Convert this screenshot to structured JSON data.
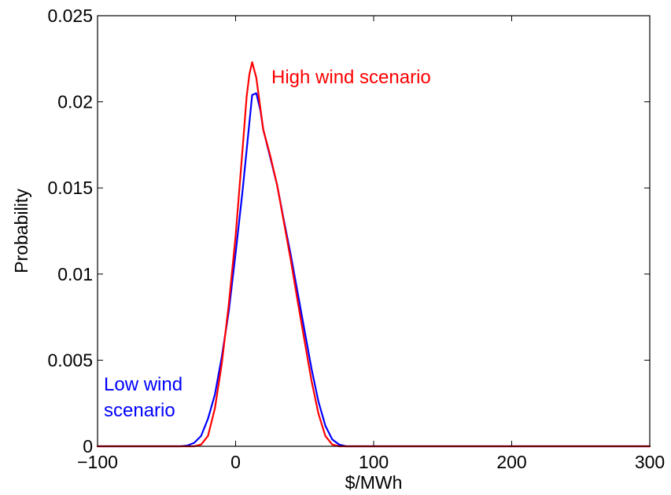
{
  "chart_data": {
    "type": "line",
    "title": "",
    "xlabel": "$/MWh",
    "ylabel": "Probability",
    "xlim": [
      -100,
      300
    ],
    "ylim": [
      0,
      0.025
    ],
    "x_ticks": [
      -100,
      0,
      100,
      200,
      300
    ],
    "x_tick_labels": [
      "−100",
      "0",
      "100",
      "200",
      "300"
    ],
    "y_ticks": [
      0,
      0.005,
      0.01,
      0.015,
      0.02,
      0.025
    ],
    "y_tick_labels": [
      "0",
      "0.005",
      "0.01",
      "0.015",
      "0.02",
      "0.025"
    ],
    "grid": false,
    "legend": "none",
    "series": [
      {
        "color": "#0000ff",
        "x": [
          -100,
          -40,
          -35,
          -30,
          -25,
          -20,
          -15,
          -10,
          -5,
          0,
          5,
          8,
          10,
          12,
          15,
          18,
          20,
          25,
          30,
          35,
          40,
          45,
          50,
          55,
          60,
          65,
          70,
          75,
          80,
          300
        ],
        "y": [
          0,
          0,
          4e-05,
          0.0002,
          0.0006,
          0.0016,
          0.003,
          0.0052,
          0.0078,
          0.0112,
          0.0148,
          0.0172,
          0.0188,
          0.0204,
          0.0205,
          0.0195,
          0.0184,
          0.0168,
          0.0152,
          0.0131,
          0.0111,
          0.0089,
          0.0067,
          0.0045,
          0.0026,
          0.0012,
          0.0004,
          0.0001,
          0,
          0
        ]
      },
      {
        "color": "#ff0000",
        "x": [
          -100,
          -30,
          -25,
          -20,
          -15,
          -10,
          -5,
          0,
          5,
          8,
          10,
          12,
          15,
          18,
          20,
          25,
          30,
          35,
          40,
          45,
          50,
          55,
          60,
          65,
          70,
          75,
          300
        ],
        "y": [
          0,
          0,
          0.0001,
          0.0006,
          0.0022,
          0.0048,
          0.0082,
          0.0122,
          0.0172,
          0.0203,
          0.0216,
          0.0223,
          0.0214,
          0.0196,
          0.0184,
          0.0169,
          0.0152,
          0.013,
          0.0108,
          0.0084,
          0.0061,
          0.0038,
          0.0019,
          0.0006,
          0.0001,
          0,
          0
        ]
      }
    ],
    "annotations": [
      {
        "text": "High wind scenario",
        "color": "#ff0000"
      },
      {
        "lines": [
          "Low wind",
          "scenario"
        ],
        "color": "#0000ff"
      }
    ]
  }
}
